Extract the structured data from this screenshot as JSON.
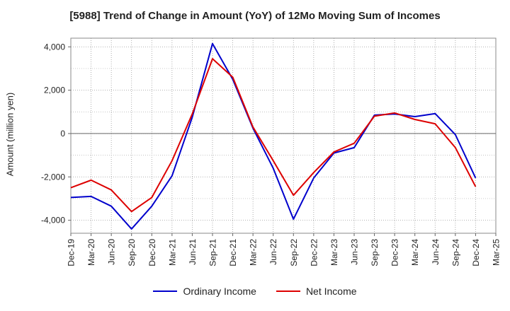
{
  "chart_data": {
    "type": "line",
    "title": "[5988]  Trend of Change in Amount (YoY) of 12Mo Moving Sum of Incomes",
    "xlabel": "",
    "ylabel": "Amount (million yen)",
    "ylim": [
      -4600,
      4400
    ],
    "yticks": [
      4000,
      2000,
      0,
      -2000,
      -4000
    ],
    "ytick_labels": [
      "4,000",
      "2,000",
      "0",
      "-2,000",
      "-4,000"
    ],
    "grid": true,
    "legend_position": "bottom-center",
    "categories": [
      "Dec-19",
      "Mar-20",
      "Jun-20",
      "Sep-20",
      "Dec-20",
      "Mar-21",
      "Jun-21",
      "Sep-21",
      "Dec-21",
      "Mar-22",
      "Jun-22",
      "Sep-22",
      "Dec-22",
      "Mar-23",
      "Jun-23",
      "Sep-23",
      "Dec-23",
      "Mar-24",
      "Jun-24",
      "Sep-24",
      "Dec-24",
      "Mar-25"
    ],
    "series": [
      {
        "name": "Ordinary Income",
        "color": "#0000cc",
        "values": [
          -2950,
          -2900,
          -3350,
          -4400,
          -3350,
          -1950,
          750,
          4150,
          2500,
          250,
          -1600,
          -3950,
          -2050,
          -900,
          -650,
          850,
          900,
          780,
          920,
          -50,
          -2050,
          null
        ]
      },
      {
        "name": "Net Income",
        "color": "#dd0000",
        "values": [
          -2500,
          -2150,
          -2600,
          -3600,
          -2950,
          -1250,
          900,
          3450,
          2600,
          300,
          -1250,
          -2850,
          -1800,
          -850,
          -450,
          800,
          950,
          650,
          450,
          -650,
          -2450,
          null
        ]
      }
    ]
  }
}
